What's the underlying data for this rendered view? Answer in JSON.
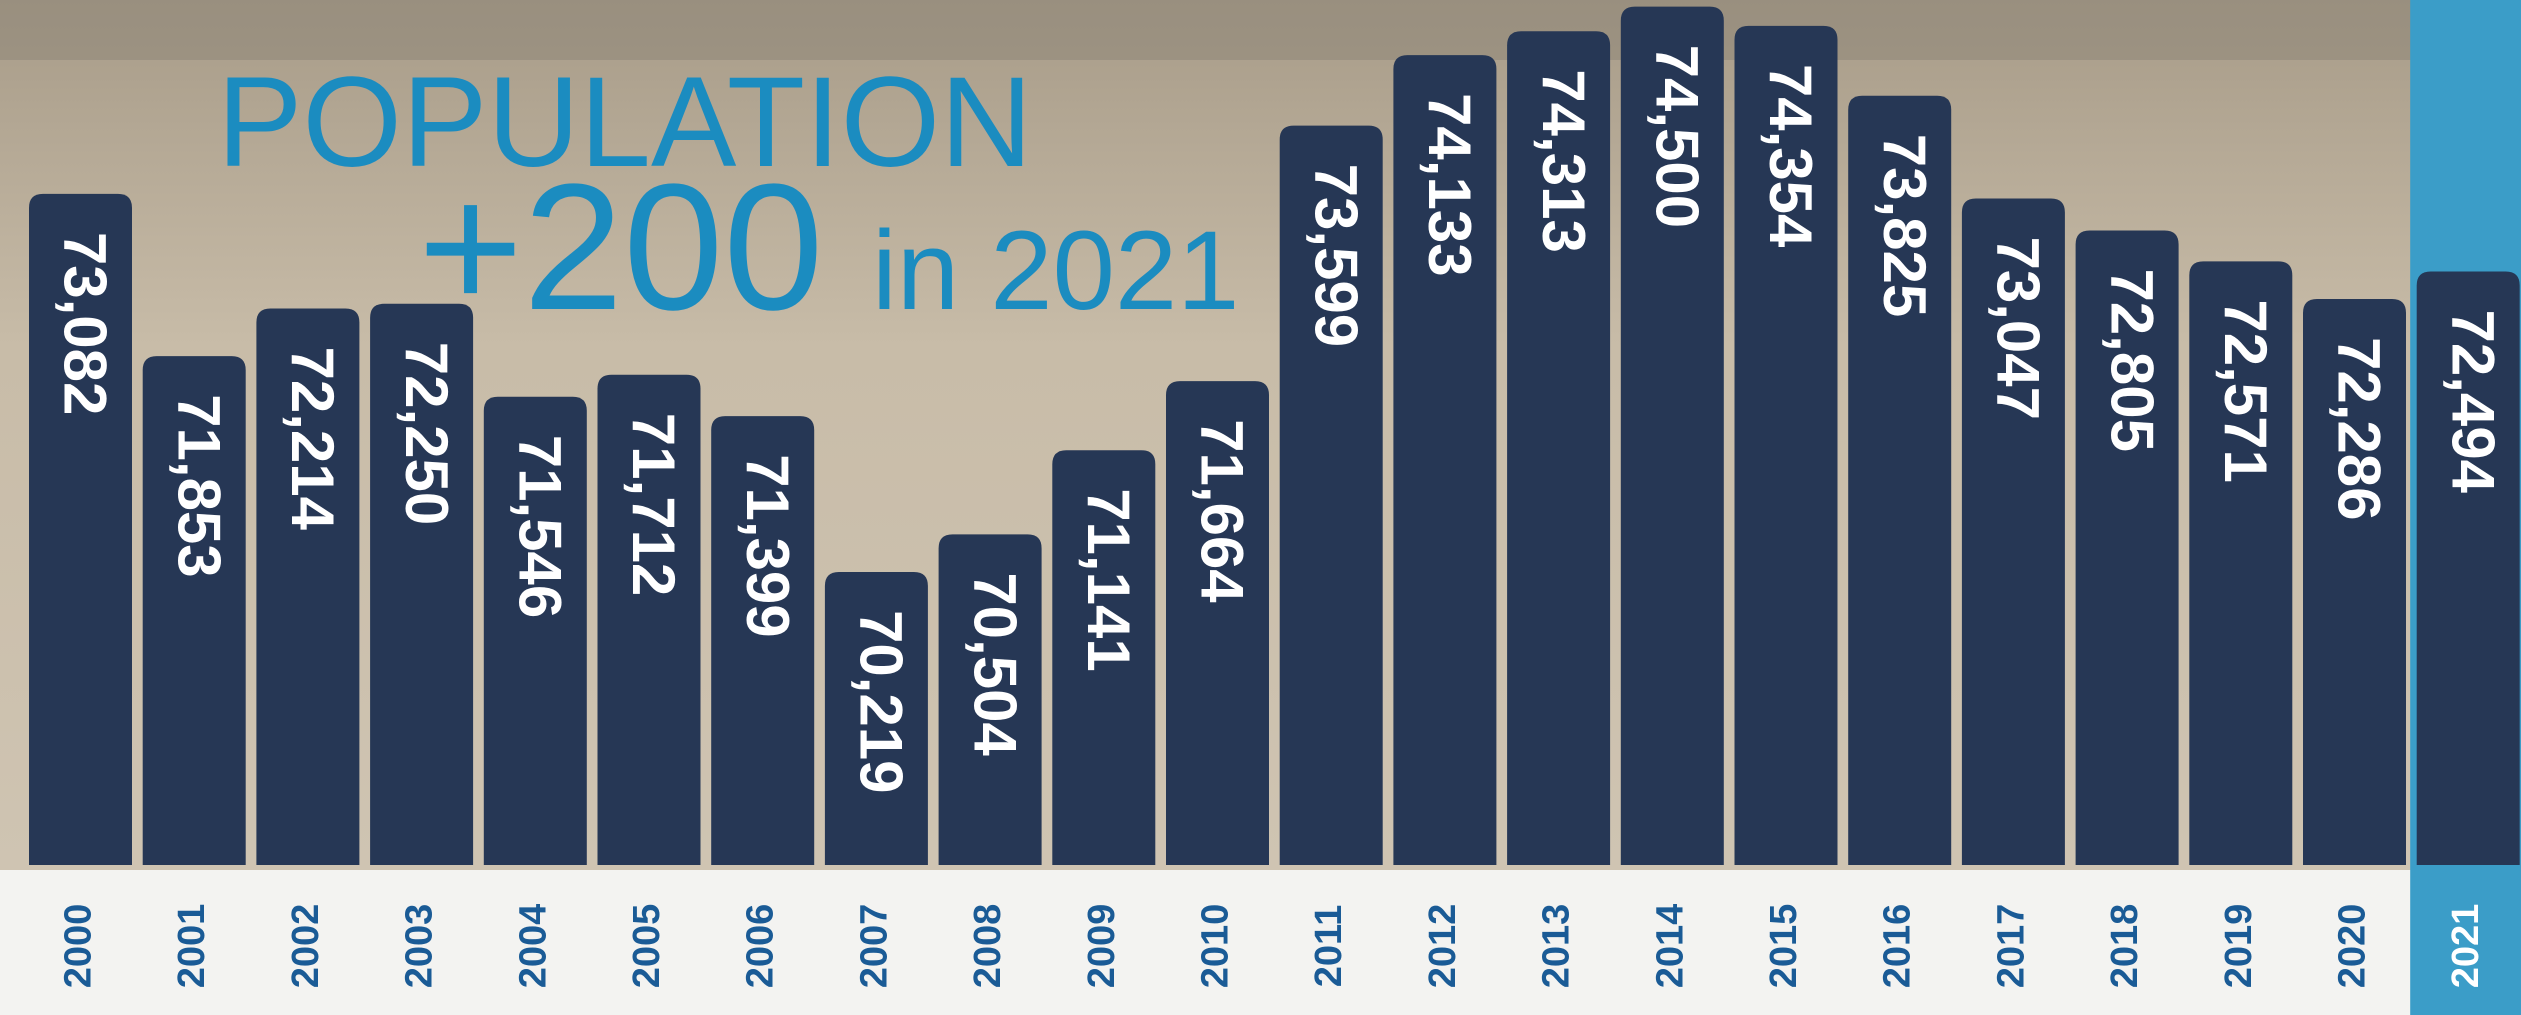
{
  "chart_data": {
    "type": "bar",
    "annotations": [
      "POPULATION",
      "+200",
      "in 2021"
    ],
    "categories": [
      "2000",
      "2001",
      "2002",
      "2003",
      "2004",
      "2005",
      "2006",
      "2007",
      "2008",
      "2009",
      "2010",
      "2011",
      "2012",
      "2013",
      "2014",
      "2015",
      "2016",
      "2017",
      "2018",
      "2019",
      "2020",
      "2021"
    ],
    "values": [
      73082,
      71853,
      72214,
      72250,
      71546,
      71712,
      71399,
      70219,
      70504,
      71141,
      71664,
      73599,
      74133,
      74313,
      74500,
      74354,
      73825,
      73047,
      72805,
      72571,
      72286,
      72494
    ],
    "value_labels": [
      "73,082",
      "71,853",
      "72,214",
      "72,250",
      "71,546",
      "71,712",
      "71,399",
      "70,219",
      "70,504",
      "71,141",
      "71,664",
      "73,599",
      "74,133",
      "74,313",
      "74,500",
      "74,354",
      "73,825",
      "73,047",
      "72,805",
      "72,571",
      "72,286",
      "72,494"
    ],
    "color": "#263755",
    "ylim": [
      68000,
      74550
    ],
    "highlight": "2021",
    "highlight_color": "#3b9dc8"
  }
}
